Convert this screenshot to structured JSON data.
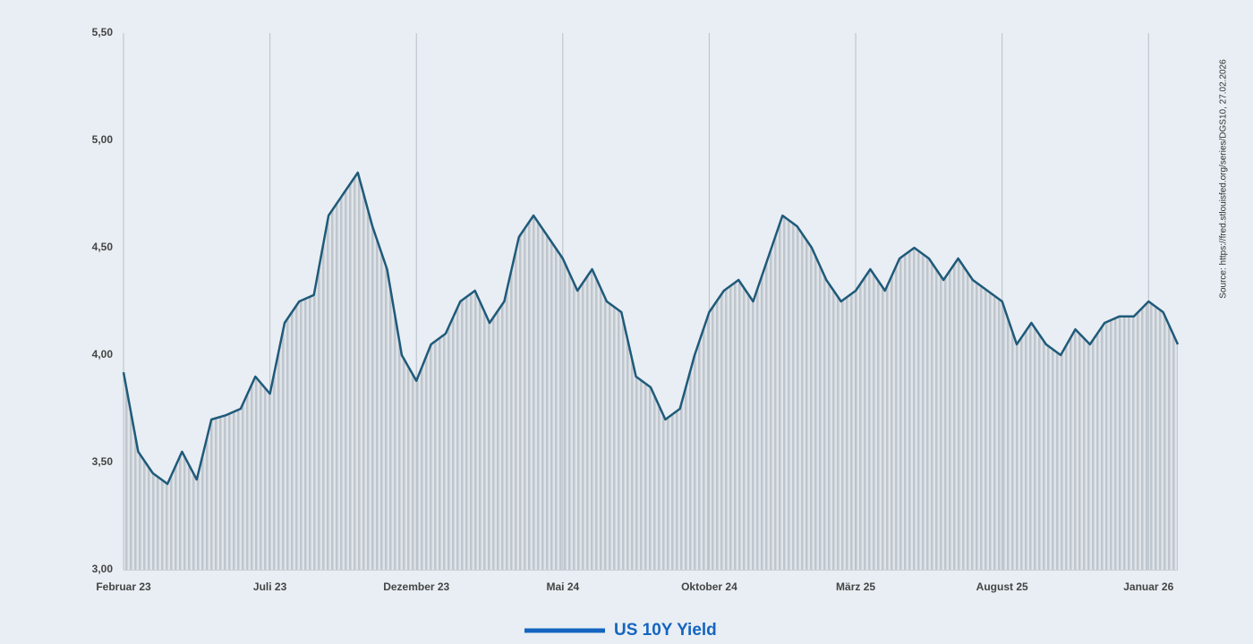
{
  "chart_data": {
    "type": "area-line",
    "series": [
      {
        "name": "US 10Y Yield",
        "color": "#1f5a7a",
        "legend_color": "#1565c0",
        "fill": "#c5ccd3",
        "values": [
          3.92,
          3.55,
          3.45,
          3.4,
          3.55,
          3.42,
          3.7,
          3.72,
          3.75,
          3.9,
          3.82,
          4.15,
          4.25,
          4.28,
          4.65,
          4.75,
          4.85,
          4.6,
          4.4,
          4.0,
          3.88,
          4.05,
          4.1,
          4.25,
          4.3,
          4.15,
          4.25,
          4.55,
          4.65,
          4.55,
          4.45,
          4.3,
          4.4,
          4.25,
          4.2,
          3.9,
          3.85,
          3.7,
          3.75,
          4.0,
          4.2,
          4.3,
          4.35,
          4.25,
          4.45,
          4.65,
          4.6,
          4.5,
          4.35,
          4.25,
          4.3,
          4.4,
          4.3,
          4.45,
          4.5,
          4.45,
          4.35,
          4.45,
          4.35,
          4.3,
          4.25,
          4.05,
          4.15,
          4.05,
          4.0,
          4.12,
          4.05,
          4.15,
          4.18,
          4.18,
          4.25,
          4.2,
          4.05
        ]
      }
    ],
    "categories": [
      "Februar 23",
      null,
      null,
      null,
      null,
      null,
      null,
      null,
      null,
      null,
      "Juli 23",
      null,
      null,
      null,
      null,
      null,
      null,
      null,
      null,
      null,
      "Dezember 23",
      null,
      null,
      null,
      null,
      null,
      null,
      null,
      null,
      null,
      "Mai 24",
      null,
      null,
      null,
      null,
      null,
      null,
      null,
      null,
      null,
      "Oktober 24",
      null,
      null,
      null,
      null,
      null,
      null,
      null,
      null,
      null,
      "März 25",
      null,
      null,
      null,
      null,
      null,
      null,
      null,
      null,
      null,
      "August 25",
      null,
      null,
      null,
      null,
      null,
      null,
      null,
      null,
      null,
      "Januar 26",
      null,
      null
    ],
    "ylim": [
      3.0,
      5.5
    ],
    "yticks": [
      {
        "value": 3.0,
        "label": "3,00"
      },
      {
        "value": 3.5,
        "label": "3,50"
      },
      {
        "value": 4.0,
        "label": "4,00"
      },
      {
        "value": 4.5,
        "label": "4,50"
      },
      {
        "value": 5.0,
        "label": "5,00"
      },
      {
        "value": 5.5,
        "label": "5,50"
      }
    ],
    "grid": true,
    "source": "Source: https://fred.stlouisfed.org/series/DGS10, 27.02.2026"
  }
}
